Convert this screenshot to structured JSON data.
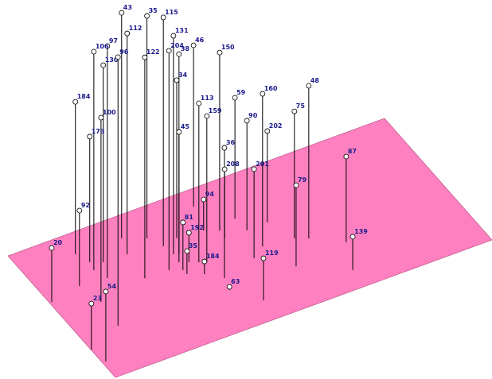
{
  "chart_data": {
    "type": "stem3d",
    "plane_color": "#ff80c0",
    "stem_color": "#000000",
    "label_color": "#1a1a8c",
    "xlim": [
      0,
      100
    ],
    "ylim": [
      0,
      100
    ],
    "zlim": [
      0,
      100
    ],
    "labels": [
      "87",
      "139",
      "48",
      "75",
      "79",
      "160",
      "202",
      "119",
      "59",
      "90",
      "201",
      "63",
      "36",
      "208",
      "113",
      "159",
      "150",
      "46",
      "184",
      "192",
      "43",
      "35",
      "115",
      "112",
      "131",
      "184",
      "20",
      "92",
      "173",
      "100",
      "130",
      "97",
      "106",
      "96",
      "204",
      "38",
      "122",
      "45",
      "23",
      "54",
      "35",
      "81",
      "94",
      "34"
    ],
    "x": [
      70.3,
      66.7,
      63.5,
      60.6,
      56,
      52.8,
      58,
      43.4,
      52.2,
      52.5,
      49,
      38.4,
      39.5,
      46.6,
      37.2,
      38.8,
      47,
      46,
      36.2,
      35.2,
      25.9,
      31,
      32.9,
      24.2,
      33.5,
      13.8,
      0.6,
      9,
      15.3,
      10.5,
      18,
      16,
      14.7,
      9.7,
      29.8,
      34.6,
      23.5,
      33.2,
      0.1,
      0.9,
      32.7,
      32.6,
      43.8,
      37
    ],
    "y": [
      31.6,
      12.9,
      42.6,
      45.8,
      28.1,
      48.1,
      61.9,
      14.3,
      71.7,
      61.6,
      42.7,
      28.5,
      37,
      61.7,
      52.7,
      50.9,
      67.7,
      88.5,
      44,
      55,
      85,
      79.3,
      70.7,
      73.9,
      63.4,
      85.6,
      61.4,
      65,
      77.5,
      50.2,
      74.4,
      63.6,
      71.6,
      31.6,
      54.6,
      62.1,
      55,
      57.2,
      22.7,
      12.1,
      48,
      51.4,
      71.4,
      72.6
    ],
    "z": [
      27,
      10.5,
      48,
      40,
      25.5,
      48,
      28.75,
      13.25,
      38,
      34.5,
      28,
      1,
      41,
      21.75,
      50,
      46,
      56,
      50.75,
      4,
      9.25,
      71,
      70,
      72,
      69.5,
      68.75,
      48,
      17,
      23.75,
      39.5,
      58,
      62,
      73,
      68.75,
      84.5,
      69,
      63,
      69.5,
      41,
      14.5,
      22,
      7.25,
      15,
      9.75,
      49.75
    ]
  }
}
